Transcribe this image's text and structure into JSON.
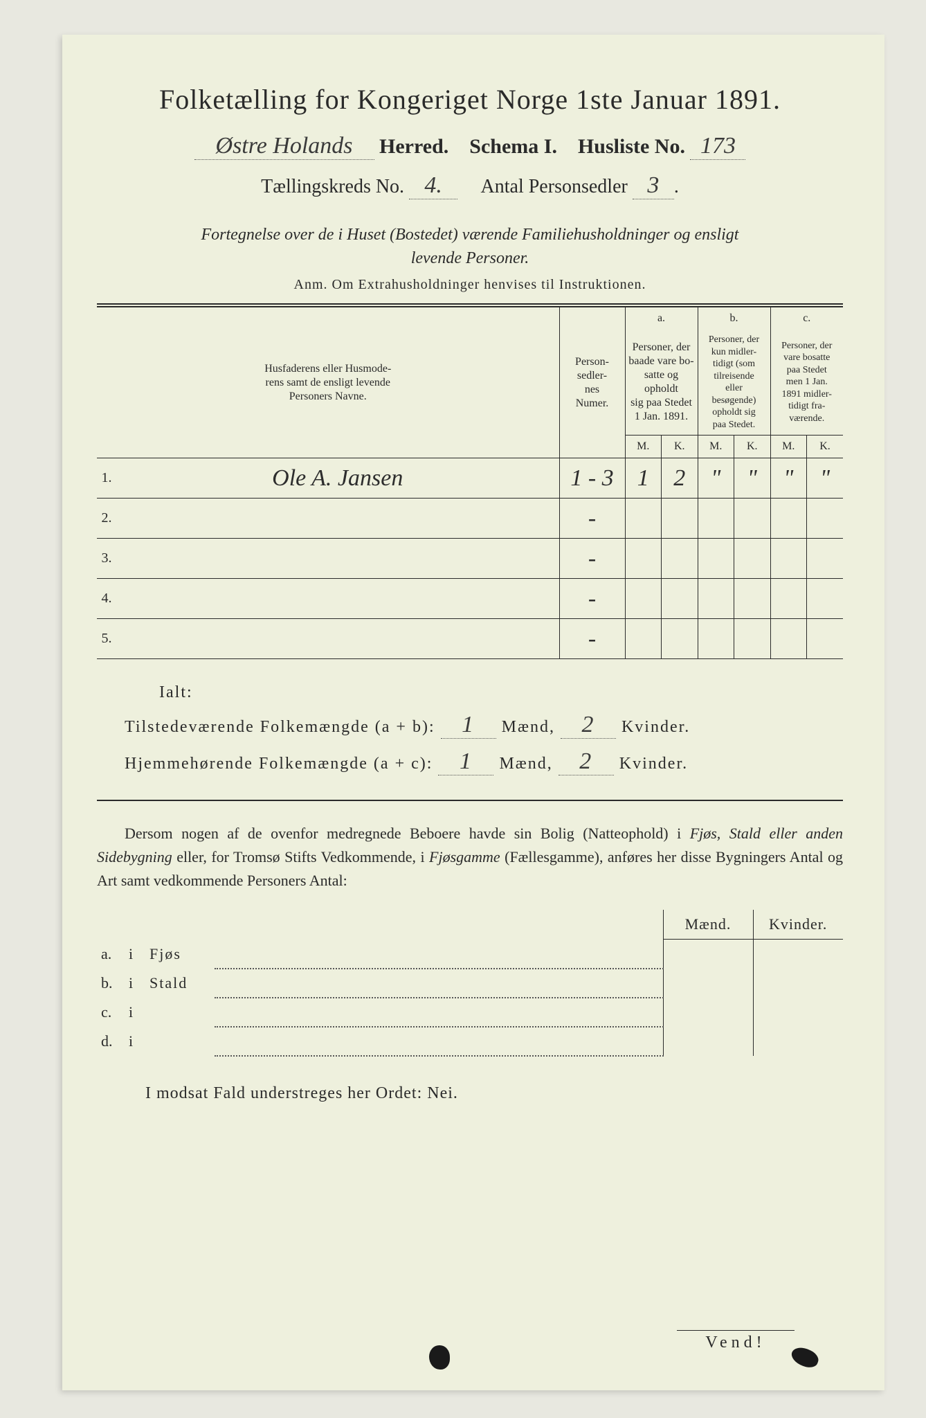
{
  "title": "Folketælling for Kongeriget Norge 1ste Januar 1891.",
  "herred_handwritten": "Østre Holands",
  "herred_label": "Herred.",
  "schema_label": "Schema I.",
  "husliste_label": "Husliste No.",
  "husliste_no": "173",
  "kreds_label": "Tællingskreds No.",
  "kreds_no": "4.",
  "antal_label": "Antal Personsedler",
  "antal_val": "3",
  "subtitle_line1": "Fortegnelse over de i Huset (Bostedet) værende Familiehusholdninger og ensligt",
  "subtitle_line2": "levende Personer.",
  "anm": "Anm.   Om Extrahusholdninger henvises til Instruktionen.",
  "table": {
    "col1_l1": "Husfaderens eller Husmode-",
    "col1_l2": "rens samt de ensligt levende",
    "col1_l3": "Personers Navne.",
    "col2_l1": "Person-",
    "col2_l2": "sedler-",
    "col2_l3": "nes",
    "col2_l4": "Numer.",
    "grp_a": "a.",
    "grp_a_l1": "Personer, der",
    "grp_a_l2": "baade vare bo-",
    "grp_a_l3": "satte og opholdt",
    "grp_a_l4": "sig paa Stedet",
    "grp_a_l5": "1 Jan. 1891.",
    "grp_b": "b.",
    "grp_b_l1": "Personer, der",
    "grp_b_l2": "kun midler-",
    "grp_b_l3": "tidigt (som",
    "grp_b_l4": "tilreisende",
    "grp_b_l5": "eller",
    "grp_b_l6": "besøgende)",
    "grp_b_l7": "opholdt sig",
    "grp_b_l8": "paa Stedet.",
    "grp_c": "c.",
    "grp_c_l1": "Personer, der",
    "grp_c_l2": "vare bosatte",
    "grp_c_l3": "paa Stedet",
    "grp_c_l4": "men 1 Jan.",
    "grp_c_l5": "1891 midler-",
    "grp_c_l6": "tidigt fra-",
    "grp_c_l7": "værende.",
    "m": "M.",
    "k": "K.",
    "rows": [
      {
        "n": "1.",
        "name": "Ole A. Jansen",
        "num": "1 - 3",
        "am": "1",
        "ak": "2",
        "bm": "\"",
        "bk": "\"",
        "cm": "\"",
        "ck": "\""
      },
      {
        "n": "2.",
        "name": "",
        "num": "-",
        "am": "",
        "ak": "",
        "bm": "",
        "bk": "",
        "cm": "",
        "ck": ""
      },
      {
        "n": "3.",
        "name": "",
        "num": "-",
        "am": "",
        "ak": "",
        "bm": "",
        "bk": "",
        "cm": "",
        "ck": ""
      },
      {
        "n": "4.",
        "name": "",
        "num": "-",
        "am": "",
        "ak": "",
        "bm": "",
        "bk": "",
        "cm": "",
        "ck": ""
      },
      {
        "n": "5.",
        "name": "",
        "num": "-",
        "am": "",
        "ak": "",
        "bm": "",
        "bk": "",
        "cm": "",
        "ck": ""
      }
    ]
  },
  "ialt": "Ialt:",
  "sum1_label": "Tilstedeværende Folkemængde (a + b):",
  "sum1_m": "1",
  "sum1_mlbl": "Mænd,",
  "sum1_k": "2",
  "sum1_klbl": "Kvinder.",
  "sum2_label": "Hjemmehørende Folkemængde (a + c):",
  "sum2_m": "1",
  "sum2_mlbl": "Mænd,",
  "sum2_k": "2",
  "sum2_klbl": "Kvinder.",
  "para": "Dersom nogen af de ovenfor medregnede Beboere havde sin Bolig (Natteophold) i Fjøs, Stald eller anden Sidebygning eller, for Tromsø Stifts Vedkommende, i Fjøsgamme (Fællesgamme), anføres her disse Bygningers Antal og Art samt vedkommende Personers Antal:",
  "sub": {
    "head_m": "Mænd.",
    "head_k": "Kvinder.",
    "rows": [
      {
        "l": "a.",
        "i": "i",
        "w": "Fjøs"
      },
      {
        "l": "b.",
        "i": "i",
        "w": "Stald"
      },
      {
        "l": "c.",
        "i": "i",
        "w": ""
      },
      {
        "l": "d.",
        "i": "i",
        "w": ""
      }
    ]
  },
  "nei": "I modsat Fald understreges her Ordet: Nei.",
  "vend": "Vend!"
}
